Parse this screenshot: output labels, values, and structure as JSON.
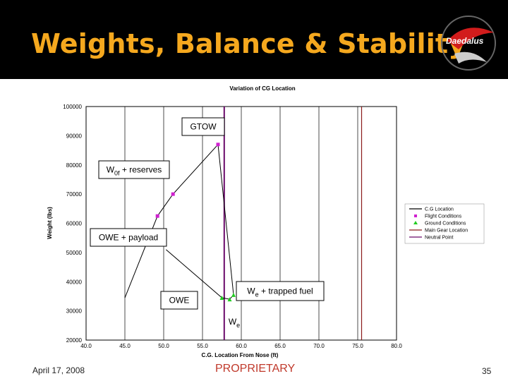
{
  "slide": {
    "title": "Weights, Balance & Stability",
    "logo_text": "Daedalus",
    "footer_date": "April 17, 2008",
    "footer_label": "PROPRIETARY",
    "page_number": "35"
  },
  "colors": {
    "header_bg": "#000000",
    "title": "#f5a81e",
    "cg_location": "#000000",
    "flight_conditions": "#d020d0",
    "ground_conditions": "#22cc22",
    "main_gear_location": "#8b1a1a",
    "neutral_point": "#6a0a6a"
  },
  "chart_data": {
    "type": "scatter",
    "title": "Variation of CG Location",
    "xlabel": "C.G. Location From Nose (ft)",
    "ylabel": "Weight (lbs)",
    "xlim": [
      40,
      80
    ],
    "ylim": [
      20000,
      100000
    ],
    "xticks": [
      "40.0",
      "45.0",
      "50.0",
      "55.0",
      "60.0",
      "65.0",
      "70.0",
      "75.0",
      "80.0"
    ],
    "yticks": [
      "20000",
      "30000",
      "40000",
      "50000",
      "60000",
      "70000",
      "80000",
      "90000",
      "100000"
    ],
    "grid": "vertical",
    "legend_position": "right",
    "legend": [
      "C.G Location",
      "Flight Conditions",
      "Ground Conditions",
      "Main Gear Location",
      "Neutral Point"
    ],
    "cg_path": [
      {
        "x": 50.3,
        "y": 51000
      },
      {
        "x": 57.5,
        "y": 34500
      },
      {
        "x": 58.5,
        "y": 34000
      },
      {
        "x": 59.0,
        "y": 35500
      },
      {
        "x": 57.0,
        "y": 87000
      },
      {
        "x": 51.2,
        "y": 70000
      },
      {
        "x": 49.2,
        "y": 62500
      },
      {
        "x": 45.0,
        "y": 34500
      }
    ],
    "flight_conditions": [
      {
        "x": 57.0,
        "y": 87000
      },
      {
        "x": 51.2,
        "y": 70000
      },
      {
        "x": 49.2,
        "y": 62500
      }
    ],
    "ground_conditions": [
      {
        "x": 57.5,
        "y": 34500
      },
      {
        "x": 58.5,
        "y": 34000
      },
      {
        "x": 59.0,
        "y": 35500
      }
    ],
    "main_gear_location": 75.5,
    "neutral_point": 57.8,
    "annotations": [
      {
        "text": "GTOW",
        "sub": "",
        "suffix": ""
      },
      {
        "text": "W",
        "sub": "0f",
        "suffix": " + reserves"
      },
      {
        "text": "OWE + payload",
        "sub": "",
        "suffix": ""
      },
      {
        "text": "OWE",
        "sub": "",
        "suffix": ""
      },
      {
        "text": "W",
        "sub": "e",
        "suffix": " + trapped fuel"
      },
      {
        "text": "W",
        "sub": "e",
        "suffix": ""
      }
    ]
  }
}
